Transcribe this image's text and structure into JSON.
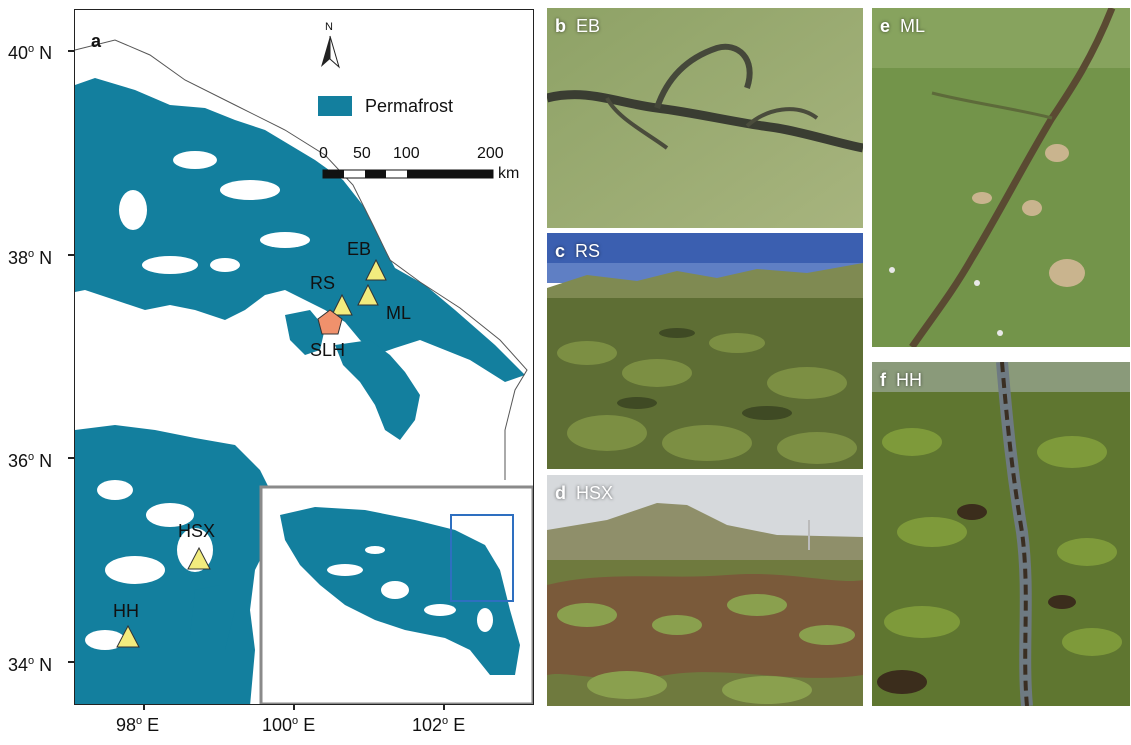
{
  "map": {
    "panel_letter": "a",
    "north_label": "N",
    "legend_label": "Permafrost",
    "permafrost_color": "#137f9e",
    "scale_ticks": [
      "0",
      "50",
      "100",
      "200"
    ],
    "scale_unit": "km",
    "lat_labels": [
      "40",
      "38",
      "36",
      "34"
    ],
    "lat_suffix": "N",
    "lon_labels": [
      "98",
      "100",
      "102"
    ],
    "lon_suffix": "E",
    "degree_symbol": "o",
    "sites": [
      {
        "code": "EB",
        "marker": "triangle",
        "color": "#f2ec7e"
      },
      {
        "code": "RS",
        "marker": "triangle",
        "color": "#f2ec7e"
      },
      {
        "code": "ML",
        "marker": "triangle",
        "color": "#f2ec7e"
      },
      {
        "code": "SLH",
        "marker": "pentagon",
        "color": "#f0916c"
      },
      {
        "code": "HSX",
        "marker": "triangle",
        "color": "#f2ec7e"
      },
      {
        "code": "HH",
        "marker": "triangle",
        "color": "#f2ec7e"
      }
    ],
    "inset_box_color": "#2e6fc0"
  },
  "photos": [
    {
      "letter": "b",
      "site": "EB"
    },
    {
      "letter": "c",
      "site": "RS"
    },
    {
      "letter": "d",
      "site": "HSX"
    },
    {
      "letter": "e",
      "site": "ML"
    },
    {
      "letter": "f",
      "site": "HH"
    }
  ]
}
